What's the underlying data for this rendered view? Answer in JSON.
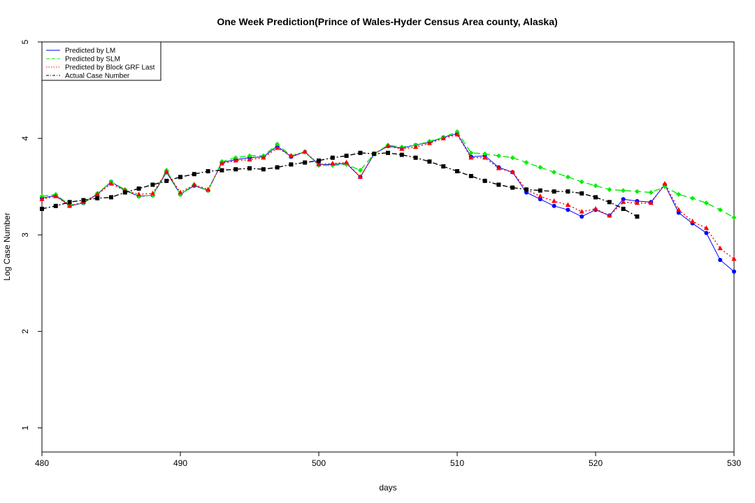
{
  "chart_data": {
    "type": "line",
    "title": "One Week Prediction(Prince of Wales-Hyder Census Area county, Alaska)",
    "xlabel": "days",
    "ylabel": "Log Case Number",
    "xlim": [
      480,
      530
    ],
    "ylim": [
      0.75,
      5.0
    ],
    "xticks": [
      "480",
      "490",
      "500",
      "510",
      "520",
      "530"
    ],
    "yticks": [
      "1",
      "2",
      "3",
      "4",
      "5"
    ],
    "grid": false,
    "legend_position": "top-left",
    "series": [
      {
        "name": "Predicted by LM",
        "color": "#0000ff",
        "dash": "solid",
        "marker": "circle",
        "x": [
          480,
          481,
          482,
          483,
          484,
          485,
          486,
          487,
          488,
          489,
          490,
          491,
          492,
          493,
          494,
          495,
          496,
          497,
          498,
          499,
          500,
          501,
          502,
          503,
          504,
          505,
          506,
          507,
          508,
          509,
          510,
          511,
          512,
          513,
          514,
          515,
          516,
          517,
          518,
          519,
          520,
          521,
          522,
          523,
          524,
          525,
          526,
          527,
          528,
          529,
          530
        ],
        "y": [
          3.38,
          3.41,
          3.3,
          3.33,
          3.42,
          3.55,
          3.46,
          3.4,
          3.41,
          3.65,
          3.42,
          3.51,
          3.46,
          3.75,
          3.78,
          3.8,
          3.81,
          3.92,
          3.81,
          3.86,
          3.73,
          3.73,
          3.74,
          3.6,
          3.84,
          3.92,
          3.9,
          3.93,
          3.96,
          4.01,
          4.05,
          3.81,
          3.82,
          3.7,
          3.65,
          3.44,
          3.37,
          3.3,
          3.26,
          3.19,
          3.26,
          3.2,
          3.37,
          3.35,
          3.34,
          3.52,
          3.23,
          3.12,
          3.02,
          2.74,
          2.62
        ]
      },
      {
        "name": "Predicted by SLM",
        "color": "#00ee00",
        "dash": "9,5",
        "marker": "diamond",
        "x": [
          480,
          481,
          482,
          483,
          484,
          485,
          486,
          487,
          488,
          489,
          490,
          491,
          492,
          493,
          494,
          495,
          496,
          497,
          498,
          499,
          500,
          501,
          502,
          503,
          504,
          505,
          506,
          507,
          508,
          509,
          510,
          511,
          512,
          513,
          514,
          515,
          516,
          517,
          518,
          519,
          520,
          521,
          522,
          523,
          524,
          525,
          526,
          527,
          528,
          529,
          530
        ],
        "y": [
          3.4,
          3.42,
          3.31,
          3.33,
          3.43,
          3.55,
          3.47,
          3.4,
          3.41,
          3.67,
          3.42,
          3.52,
          3.46,
          3.76,
          3.8,
          3.82,
          3.82,
          3.94,
          3.82,
          3.86,
          3.72,
          3.72,
          3.73,
          3.67,
          3.84,
          3.93,
          3.91,
          3.93,
          3.97,
          4.01,
          4.07,
          3.85,
          3.84,
          3.82,
          3.8,
          3.75,
          3.7,
          3.65,
          3.6,
          3.55,
          3.51,
          3.47,
          3.46,
          3.45,
          3.44,
          3.5,
          3.42,
          3.38,
          3.33,
          3.26,
          3.18
        ]
      },
      {
        "name": "Predicted by Block GRF Last",
        "color": "#ff0000",
        "dash": "2,3",
        "marker": "triangle",
        "x": [
          480,
          481,
          482,
          483,
          484,
          485,
          486,
          487,
          488,
          489,
          490,
          491,
          492,
          493,
          494,
          495,
          496,
          497,
          498,
          499,
          500,
          501,
          502,
          503,
          504,
          505,
          506,
          507,
          508,
          509,
          510,
          511,
          512,
          513,
          514,
          515,
          516,
          517,
          518,
          519,
          520,
          521,
          522,
          523,
          524,
          525,
          526,
          527,
          528,
          529,
          530
        ],
        "y": [
          3.37,
          3.4,
          3.3,
          3.34,
          3.42,
          3.53,
          3.46,
          3.42,
          3.43,
          3.65,
          3.44,
          3.52,
          3.47,
          3.74,
          3.77,
          3.78,
          3.8,
          3.9,
          3.82,
          3.86,
          3.73,
          3.74,
          3.75,
          3.6,
          3.84,
          3.92,
          3.89,
          3.91,
          3.95,
          4.0,
          4.04,
          3.8,
          3.8,
          3.69,
          3.65,
          3.47,
          3.4,
          3.35,
          3.31,
          3.24,
          3.27,
          3.2,
          3.34,
          3.33,
          3.33,
          3.53,
          3.26,
          3.14,
          3.07,
          2.86,
          2.75
        ]
      },
      {
        "name": "Actual Case Number",
        "color": "#000000",
        "dash": "7,3,2,3",
        "marker": "square",
        "x": [
          480,
          481,
          482,
          483,
          484,
          485,
          486,
          487,
          488,
          489,
          490,
          491,
          492,
          493,
          494,
          495,
          496,
          497,
          498,
          499,
          500,
          501,
          502,
          503,
          504,
          505,
          506,
          507,
          508,
          509,
          510,
          511,
          512,
          513,
          514,
          515,
          516,
          517,
          518,
          519,
          520,
          521,
          522,
          523
        ],
        "y": [
          3.27,
          3.3,
          3.34,
          3.36,
          3.38,
          3.39,
          3.44,
          3.48,
          3.52,
          3.56,
          3.6,
          3.63,
          3.66,
          3.67,
          3.68,
          3.69,
          3.68,
          3.7,
          3.73,
          3.75,
          3.77,
          3.8,
          3.82,
          3.85,
          3.84,
          3.85,
          3.83,
          3.8,
          3.76,
          3.71,
          3.66,
          3.61,
          3.56,
          3.52,
          3.49,
          3.47,
          3.46,
          3.45,
          3.45,
          3.43,
          3.39,
          3.34,
          3.27,
          3.19
        ]
      }
    ]
  }
}
